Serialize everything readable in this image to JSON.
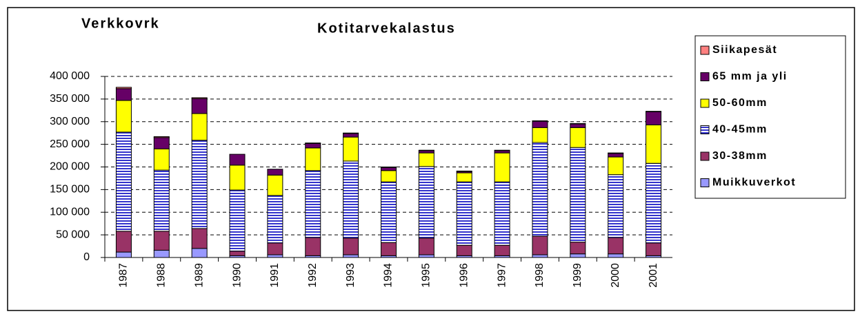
{
  "chart_data": {
    "type": "bar",
    "stacked": true,
    "title": "Kotitarvekalastus",
    "annotation": "Verkkovrk",
    "categories": [
      "1987",
      "1988",
      "1989",
      "1990",
      "1991",
      "1992",
      "1993",
      "1994",
      "1995",
      "1996",
      "1997",
      "1998",
      "1999",
      "2000",
      "2001"
    ],
    "series": [
      {
        "name": "Muikkuverkot",
        "color": "#9999ff",
        "values": [
          12000,
          16000,
          20000,
          4000,
          6000,
          4000,
          6000,
          4000,
          6000,
          4000,
          4000,
          6000,
          8000,
          8000,
          4000
        ]
      },
      {
        "name": "30-38mm",
        "color": "#993366",
        "values": [
          46000,
          42000,
          44000,
          10000,
          26000,
          40000,
          37000,
          29000,
          37000,
          23000,
          23000,
          41000,
          26000,
          36000,
          28000
        ]
      },
      {
        "name": "40-45mm",
        "color": "#3333cc",
        "pattern": "horizontal-lines",
        "values": [
          219000,
          135000,
          195000,
          135000,
          105000,
          148000,
          170000,
          134000,
          158000,
          140000,
          140000,
          207000,
          209000,
          139000,
          176000
        ]
      },
      {
        "name": "50-60mm",
        "color": "#ffff00",
        "values": [
          70000,
          47000,
          59000,
          55000,
          45000,
          50000,
          53000,
          25000,
          30000,
          20000,
          64000,
          33000,
          44000,
          39000,
          85000
        ]
      },
      {
        "name": "65 mm ja yli",
        "color": "#660066",
        "values": [
          26000,
          25000,
          33000,
          24000,
          13000,
          10000,
          8000,
          7000,
          5000,
          3000,
          5000,
          14000,
          8000,
          8000,
          29000
        ]
      },
      {
        "name": "Siikapesät",
        "color": "#ff8080",
        "values": [
          3000,
          2000,
          2000,
          0,
          0,
          1000,
          1000,
          1000,
          1000,
          1000,
          1000,
          1000,
          1000,
          1000,
          1000
        ]
      }
    ],
    "ylim": [
      0,
      400000
    ],
    "yticks": [
      0,
      {
        "value": 50000,
        "label": "50 000"
      },
      {
        "value": 100000,
        "label": "100 000"
      },
      {
        "value": 150000,
        "label": "150 000"
      },
      {
        "value": 200000,
        "label": "200 000"
      },
      {
        "value": 250000,
        "label": "250 000"
      },
      {
        "value": 300000,
        "label": "300 000"
      },
      {
        "value": 350000,
        "label": "350 000"
      },
      {
        "value": 400000,
        "label": "400 000"
      }
    ],
    "grid": true,
    "legend": "right"
  }
}
